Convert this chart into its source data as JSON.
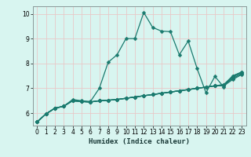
{
  "xlabel": "Humidex (Indice chaleur)",
  "bg_color": "#d8f5f0",
  "grid_color": "#e8c8c8",
  "line_color": "#1a7a6e",
  "spine_color": "#8a9a99",
  "xlim": [
    -0.5,
    23.5
  ],
  "ylim": [
    5.5,
    10.3
  ],
  "xticks": [
    0,
    1,
    2,
    3,
    4,
    5,
    6,
    7,
    8,
    9,
    10,
    11,
    12,
    13,
    14,
    15,
    16,
    17,
    18,
    19,
    20,
    21,
    22,
    23
  ],
  "yticks": [
    6,
    7,
    8,
    9,
    10
  ],
  "series": [
    [
      5.65,
      5.97,
      6.2,
      6.28,
      6.55,
      6.5,
      6.47,
      7.0,
      8.05,
      8.35,
      9.0,
      9.0,
      10.05,
      9.45,
      9.3,
      9.28,
      8.35,
      8.9,
      7.8,
      6.82,
      7.48,
      7.05,
      7.5,
      7.65
    ],
    [
      5.65,
      5.97,
      6.2,
      6.28,
      6.5,
      6.47,
      6.45,
      6.5,
      6.52,
      6.55,
      6.6,
      6.65,
      6.7,
      6.75,
      6.8,
      6.85,
      6.9,
      6.95,
      7.0,
      7.05,
      7.1,
      7.15,
      7.5,
      7.65
    ],
    [
      5.65,
      5.97,
      6.2,
      6.28,
      6.5,
      6.47,
      6.45,
      6.5,
      6.52,
      6.55,
      6.6,
      6.65,
      6.7,
      6.75,
      6.8,
      6.85,
      6.9,
      6.95,
      7.0,
      7.05,
      7.1,
      7.15,
      7.45,
      7.62
    ],
    [
      5.65,
      5.97,
      6.2,
      6.28,
      6.5,
      6.47,
      6.45,
      6.5,
      6.52,
      6.55,
      6.6,
      6.65,
      6.7,
      6.75,
      6.8,
      6.85,
      6.9,
      6.95,
      7.0,
      7.05,
      7.1,
      7.12,
      7.4,
      7.58
    ],
    [
      5.65,
      5.97,
      6.2,
      6.28,
      6.5,
      6.47,
      6.45,
      6.5,
      6.52,
      6.55,
      6.6,
      6.65,
      6.7,
      6.75,
      6.8,
      6.85,
      6.9,
      6.95,
      7.0,
      7.05,
      7.1,
      7.1,
      7.35,
      7.55
    ]
  ],
  "markersize": 2.5,
  "linewidth": 0.9,
  "tick_fontsize": 5.5,
  "xlabel_fontsize": 6.5
}
